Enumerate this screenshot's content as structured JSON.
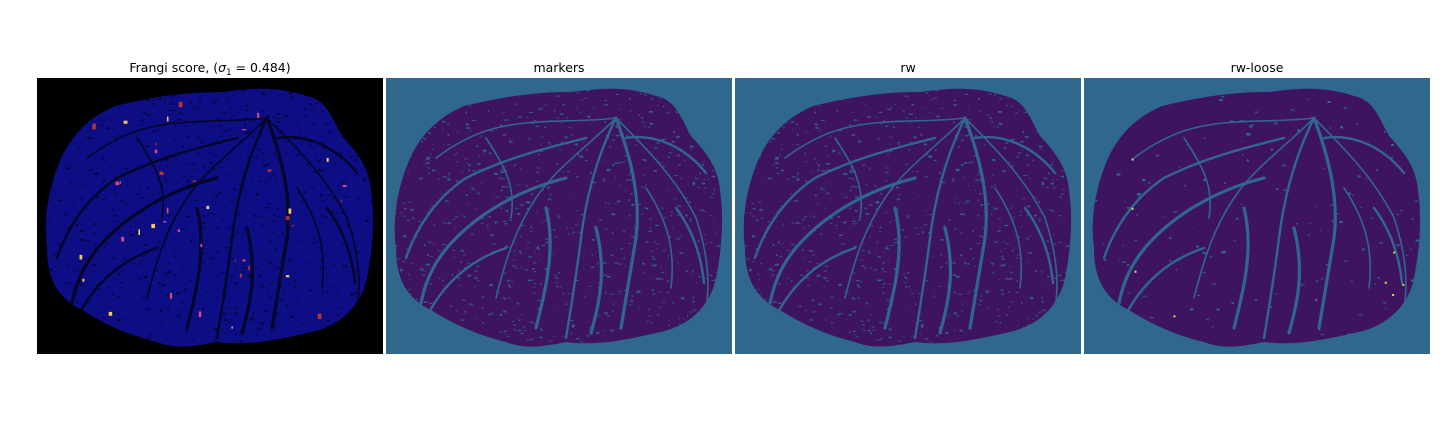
{
  "figure": {
    "panels": [
      {
        "id": "frangi",
        "title_prefix": "Frangi score, (",
        "title_sigma": "σ",
        "title_sub": "1",
        "title_suffix": " = 0.484)",
        "background": "#000000",
        "fill": "#0d0d86",
        "vessel_color": "#050528",
        "highlight_colors": [
          "#d94b7a",
          "#f3c65a",
          "#b5362e"
        ]
      },
      {
        "id": "markers",
        "title": "markers",
        "background": "#30678d",
        "fill": "#3e1460",
        "vessel_color": "#30678d"
      },
      {
        "id": "rw",
        "title": "rw",
        "background": "#30678d",
        "fill": "#3e1460",
        "vessel_color": "#30678d"
      },
      {
        "id": "rw-loose",
        "title": "rw-loose",
        "background": "#30678d",
        "fill": "#3e1460",
        "vessel_color": "#30678d",
        "highlight_colors": [
          "#c8e64a"
        ]
      }
    ]
  }
}
